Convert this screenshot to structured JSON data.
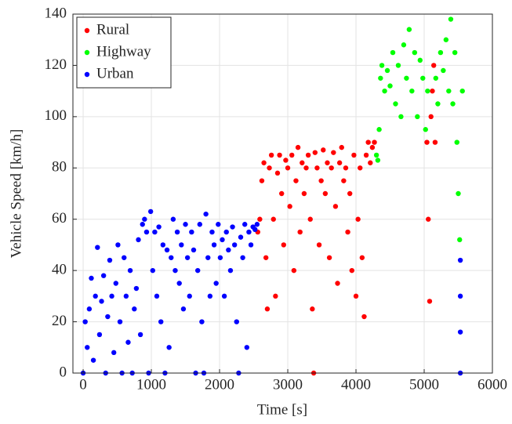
{
  "chart_data": {
    "type": "scatter",
    "xlabel": "Time [s]",
    "ylabel": "Vehicle Speed [km/h]",
    "xlim": [
      -150,
      6000
    ],
    "ylim": [
      0,
      140
    ],
    "xticks": [
      0,
      1000,
      2000,
      3000,
      4000,
      5000,
      6000
    ],
    "yticks": [
      0,
      20,
      40,
      60,
      80,
      100,
      120,
      140
    ],
    "grid": true,
    "legend": "upper-left",
    "series": [
      {
        "name": "Rural",
        "color": "#ff0000",
        "x": [
          2560,
          2590,
          2620,
          2650,
          2680,
          2700,
          2730,
          2760,
          2790,
          2820,
          2850,
          2880,
          2910,
          2940,
          2970,
          3000,
          3030,
          3060,
          3090,
          3120,
          3150,
          3180,
          3210,
          3240,
          3270,
          3300,
          3330,
          3360,
          3380,
          3400,
          3430,
          3460,
          3490,
          3520,
          3550,
          3580,
          3610,
          3640,
          3670,
          3700,
          3730,
          3760,
          3790,
          3820,
          3850,
          3880,
          3910,
          3940,
          3970,
          4000,
          4030,
          4060,
          4090,
          4120,
          4150,
          4180,
          4210,
          4240,
          4270,
          5040,
          5060,
          5080,
          5100,
          5120,
          5140,
          5160
        ],
        "values": [
          55,
          60,
          75,
          82,
          45,
          25,
          80,
          85,
          60,
          30,
          78,
          85,
          70,
          50,
          83,
          80,
          65,
          85,
          40,
          75,
          88,
          55,
          82,
          70,
          80,
          85,
          60,
          25,
          0,
          86,
          80,
          50,
          75,
          87,
          70,
          82,
          45,
          80,
          86,
          65,
          35,
          82,
          88,
          75,
          80,
          55,
          70,
          40,
          85,
          30,
          60,
          80,
          45,
          22,
          85,
          90,
          82,
          88,
          90,
          90,
          60,
          28,
          100,
          110,
          120,
          90
        ]
      },
      {
        "name": "Highway",
        "color": "#00ff00",
        "x": [
          4300,
          4320,
          4340,
          4360,
          4380,
          4420,
          4460,
          4500,
          4540,
          4580,
          4620,
          4660,
          4700,
          4740,
          4780,
          4820,
          4860,
          4900,
          4940,
          4980,
          5020,
          5050,
          5170,
          5200,
          5240,
          5280,
          5320,
          5360,
          5390,
          5420,
          5450,
          5480,
          5500,
          5520,
          5560
        ],
        "values": [
          85,
          83,
          95,
          115,
          120,
          110,
          118,
          112,
          125,
          105,
          120,
          100,
          128,
          115,
          134,
          110,
          125,
          100,
          122,
          115,
          95,
          110,
          115,
          105,
          125,
          118,
          130,
          110,
          138,
          105,
          125,
          90,
          70,
          52,
          110
        ]
      },
      {
        "name": "Urban",
        "color": "#0000ff",
        "x": [
          0,
          30,
          60,
          90,
          120,
          150,
          180,
          210,
          240,
          270,
          300,
          330,
          360,
          390,
          420,
          450,
          480,
          510,
          540,
          570,
          600,
          630,
          660,
          690,
          720,
          750,
          780,
          810,
          840,
          870,
          900,
          930,
          960,
          990,
          1020,
          1050,
          1080,
          1110,
          1140,
          1170,
          1200,
          1230,
          1260,
          1290,
          1320,
          1350,
          1380,
          1410,
          1440,
          1470,
          1500,
          1530,
          1560,
          1590,
          1620,
          1650,
          1680,
          1710,
          1740,
          1770,
          1800,
          1830,
          1860,
          1890,
          1920,
          1950,
          1980,
          2010,
          2040,
          2070,
          2100,
          2130,
          2160,
          2190,
          2220,
          2250,
          2280,
          2310,
          2340,
          2370,
          2400,
          2430,
          2460,
          2490,
          2520,
          2550,
          5530,
          5530,
          5530,
          5530
        ],
        "values": [
          0,
          20,
          10,
          25,
          37,
          5,
          30,
          49,
          15,
          28,
          38,
          0,
          22,
          44,
          30,
          8,
          35,
          50,
          20,
          0,
          45,
          30,
          12,
          40,
          0,
          25,
          33,
          52,
          15,
          58,
          60,
          55,
          0,
          63,
          40,
          55,
          30,
          57,
          20,
          50,
          0,
          48,
          10,
          45,
          60,
          40,
          55,
          35,
          50,
          25,
          58,
          45,
          30,
          55,
          48,
          0,
          40,
          58,
          20,
          0,
          62,
          45,
          30,
          55,
          50,
          35,
          58,
          45,
          52,
          30,
          55,
          48,
          40,
          57,
          50,
          20,
          0,
          53,
          45,
          58,
          10,
          55,
          50,
          57,
          56,
          58,
          44,
          30,
          16,
          0
        ]
      }
    ]
  }
}
